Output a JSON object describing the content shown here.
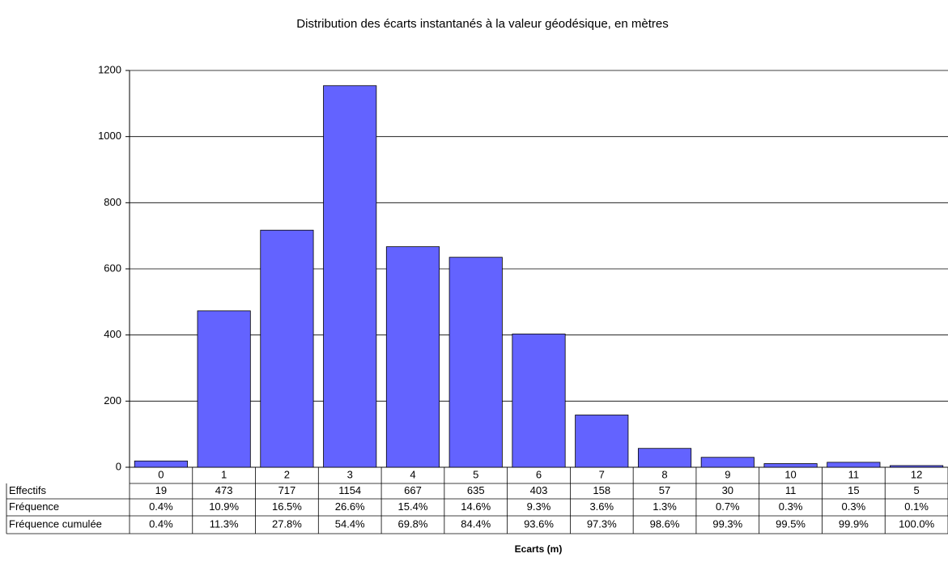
{
  "chart_data": {
    "type": "bar",
    "title": "Distribution des écarts instantanés à la valeur géodésique, en mètres",
    "xlabel": "Ecarts (m)",
    "categories": [
      "0",
      "1",
      "2",
      "3",
      "4",
      "5",
      "6",
      "7",
      "8",
      "9",
      "10",
      "11",
      "12"
    ],
    "series": [
      {
        "name": "Effectifs",
        "color": "#6363ff",
        "values": [
          19,
          473,
          717,
          1154,
          667,
          635,
          403,
          158,
          57,
          30,
          11,
          15,
          5
        ]
      }
    ],
    "ylim": [
      0,
      1200
    ],
    "yticks": [
      0,
      200,
      400,
      600,
      800,
      1000,
      1200
    ],
    "grid": true,
    "data_table": {
      "rows": [
        {
          "name": "Fréquence",
          "values": [
            0.4,
            10.9,
            16.5,
            26.6,
            15.4,
            14.6,
            9.3,
            3.6,
            1.3,
            0.7,
            0.3,
            0.3,
            0.1
          ],
          "value_labels": [
            "0.4%",
            "10.9%",
            "16.5%",
            "26.6%",
            "15.4%",
            "14.6%",
            "9.3%",
            "3.6%",
            "1.3%",
            "0.7%",
            "0.3%",
            "0.3%",
            "0.1%"
          ]
        },
        {
          "name": "Fréquence cumulée",
          "values": [
            0.4,
            11.3,
            27.8,
            54.4,
            69.8,
            84.4,
            93.6,
            97.3,
            98.6,
            99.3,
            99.5,
            99.9,
            100.0
          ],
          "value_labels": [
            "0.4%",
            "11.3%",
            "27.8%",
            "54.4%",
            "69.8%",
            "84.4%",
            "93.6%",
            "97.3%",
            "98.6%",
            "99.3%",
            "99.5%",
            "99.9%",
            "100.0%"
          ]
        }
      ]
    }
  }
}
